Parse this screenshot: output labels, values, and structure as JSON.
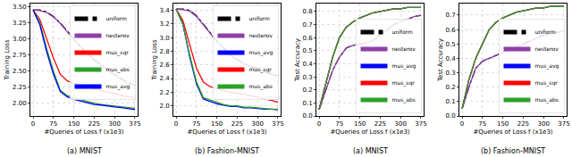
{
  "chart_data": [
    {
      "type": "line",
      "title": "(a) MNIST",
      "x_label": "#Queries of Loss f (x1e3)",
      "y_label": "Training Loss",
      "x": [
        0,
        25,
        50,
        75,
        100,
        125,
        150,
        175,
        200,
        225,
        250,
        275,
        300,
        325,
        350,
        375
      ],
      "xlim": [
        -10,
        385
      ],
      "xticks": [
        0,
        75,
        150,
        225,
        300,
        375
      ],
      "ylim": [
        1.8,
        3.55
      ],
      "yticks": [
        {
          "value": 2.0,
          "label": "2.00"
        },
        {
          "value": 2.25,
          "label": "2.25"
        },
        {
          "value": 2.5,
          "label": "2.50"
        },
        {
          "value": 2.75,
          "label": "2.75"
        },
        {
          "value": 3.0,
          "label": "3.00"
        },
        {
          "value": 3.25,
          "label": "3.25"
        },
        {
          "value": 3.5,
          "label": "3.50"
        }
      ],
      "grid": true,
      "legend": "upper right",
      "series": [
        {
          "name": "uniform",
          "color": "#000000",
          "line_style": "dashdot",
          "values": [
            3.45,
            3.45,
            3.42,
            3.35,
            3.25,
            3.12,
            3.0,
            2.88,
            2.78,
            2.68,
            2.6,
            2.52,
            2.45,
            2.38,
            2.32,
            2.28
          ]
        },
        {
          "name": "nesterov",
          "color": "#8e3fa8",
          "line_style": "solid",
          "values": [
            3.45,
            3.44,
            3.41,
            3.34,
            3.24,
            3.11,
            2.99,
            2.87,
            2.77,
            2.67,
            2.59,
            2.51,
            2.44,
            2.37,
            2.31,
            2.27
          ]
        },
        {
          "name": "mus_sqr",
          "color": "#ff0000",
          "line_style": "solid",
          "values": [
            3.45,
            3.3,
            3.0,
            2.7,
            2.45,
            2.35,
            2.3,
            2.28,
            2.25,
            2.22,
            2.2,
            2.18,
            2.15,
            2.12,
            2.1,
            2.08
          ]
        },
        {
          "name": "mus_abs",
          "color": "#2ca02c",
          "line_style": "solid",
          "values": [
            3.45,
            3.25,
            2.85,
            2.5,
            2.2,
            2.12,
            2.08,
            2.05,
            2.02,
            2.0,
            1.98,
            1.97,
            1.95,
            1.94,
            1.93,
            1.92
          ]
        },
        {
          "name": "mus_avg",
          "color": "#0000ff",
          "line_style": "solid",
          "values": [
            3.45,
            3.22,
            2.8,
            2.45,
            2.18,
            2.1,
            2.06,
            2.03,
            2.0,
            1.98,
            1.97,
            1.95,
            1.94,
            1.93,
            1.92,
            1.9
          ]
        }
      ]
    },
    {
      "type": "line",
      "title": "(b) Fashion-MNIST",
      "x_label": "#Queries of Loss f (x1e3)",
      "y_label": "Training Loss",
      "x": [
        0,
        25,
        50,
        75,
        100,
        125,
        150,
        175,
        200,
        225,
        250,
        275,
        300,
        325,
        350,
        375
      ],
      "xlim": [
        -10,
        385
      ],
      "xticks": [
        0,
        75,
        150,
        225,
        300,
        375
      ],
      "ylim": [
        1.85,
        3.5
      ],
      "yticks": [
        {
          "value": 2.0,
          "label": "2.0"
        },
        {
          "value": 2.2,
          "label": "2.2"
        },
        {
          "value": 2.4,
          "label": "2.4"
        },
        {
          "value": 2.6,
          "label": "2.6"
        },
        {
          "value": 2.8,
          "label": "2.8"
        },
        {
          "value": 3.0,
          "label": "3.0"
        },
        3.2,
        3.4
      ],
      "grid": true,
      "legend": "upper right",
      "series": [
        {
          "name": "uniform",
          "color": "#000000",
          "line_style": "dashdot",
          "values": [
            3.42,
            3.42,
            3.4,
            3.32,
            3.2,
            3.08,
            2.95,
            2.85,
            2.75,
            2.68,
            2.62,
            2.58,
            2.54,
            2.5,
            2.47,
            2.44
          ]
        },
        {
          "name": "nesterov",
          "color": "#8e3fa8",
          "line_style": "solid",
          "values": [
            3.42,
            3.41,
            3.39,
            3.31,
            3.19,
            3.07,
            2.94,
            2.84,
            2.74,
            2.67,
            2.61,
            2.57,
            2.53,
            2.49,
            2.46,
            2.43
          ]
        },
        {
          "name": "mus_avg",
          "color": "#0000ff",
          "line_style": "solid",
          "values": [
            3.42,
            3.2,
            2.72,
            2.32,
            2.1,
            2.06,
            2.03,
            2.01,
            1.99,
            1.99,
            1.97,
            1.97,
            1.96,
            1.95,
            1.95,
            1.94
          ]
        },
        {
          "name": "mus_sqr",
          "color": "#ff0000",
          "line_style": "solid",
          "values": [
            3.42,
            3.25,
            2.9,
            2.55,
            2.35,
            2.28,
            2.25,
            2.22,
            2.2,
            2.18,
            2.17,
            2.15,
            2.12,
            2.1,
            2.08,
            2.05
          ]
        },
        {
          "name": "mus_abs",
          "color": "#2ca02c",
          "line_style": "solid",
          "values": [
            3.42,
            3.2,
            2.75,
            2.35,
            2.12,
            2.08,
            2.05,
            2.02,
            2.0,
            2.0,
            1.98,
            1.98,
            1.97,
            1.96,
            1.95,
            1.95
          ]
        }
      ]
    },
    {
      "type": "line",
      "title": "(a) MNIST",
      "x_label": "#Queries of Loss f (x1e3)",
      "y_label": "Test Accuracy",
      "x": [
        0,
        25,
        50,
        75,
        100,
        125,
        150,
        175,
        200,
        225,
        250,
        275,
        300,
        325,
        350,
        375
      ],
      "xlim": [
        -10,
        385
      ],
      "xticks": [
        0,
        75,
        150,
        225,
        300,
        375
      ],
      "ylim": [
        0,
        0.86
      ],
      "yticks": [
        {
          "value": 0,
          "label": "0.0"
        },
        0.1,
        0.2,
        0.3,
        0.4,
        0.5,
        0.6,
        0.7,
        0.8
      ],
      "grid": true,
      "legend": "lower right",
      "series": [
        {
          "name": "uniform",
          "color": "#000000",
          "line_style": "dashdot",
          "values": [
            0.05,
            0.2,
            0.35,
            0.45,
            0.52,
            0.54,
            0.55,
            0.56,
            0.58,
            0.62,
            0.66,
            0.7,
            0.72,
            0.74,
            0.76,
            0.77
          ]
        },
        {
          "name": "nesterov",
          "color": "#8e3fa8",
          "line_style": "solid",
          "values": [
            0.05,
            0.2,
            0.35,
            0.45,
            0.52,
            0.54,
            0.55,
            0.56,
            0.58,
            0.62,
            0.66,
            0.7,
            0.72,
            0.74,
            0.76,
            0.77
          ]
        },
        {
          "name": "mus_avg",
          "color": "#0000ff",
          "line_style": "solid",
          "values": [
            0.05,
            0.25,
            0.45,
            0.6,
            0.68,
            0.72,
            0.75,
            0.77,
            0.79,
            0.8,
            0.81,
            0.82,
            0.82,
            0.83,
            0.83,
            0.83
          ]
        },
        {
          "name": "mus_sqr",
          "color": "#ff0000",
          "line_style": "solid",
          "values": [
            0.05,
            0.25,
            0.45,
            0.6,
            0.68,
            0.72,
            0.75,
            0.77,
            0.79,
            0.8,
            0.81,
            0.82,
            0.82,
            0.83,
            0.83,
            0.83
          ]
        },
        {
          "name": "mus_abs",
          "color": "#2ca02c",
          "line_style": "solid",
          "values": [
            0.05,
            0.25,
            0.45,
            0.6,
            0.68,
            0.72,
            0.75,
            0.77,
            0.79,
            0.8,
            0.81,
            0.82,
            0.82,
            0.83,
            0.83,
            0.83
          ]
        }
      ]
    },
    {
      "type": "line",
      "title": "(b) Fashion-MNIST",
      "x_label": "#Queries of Loss f (x1e3)",
      "y_label": "Test Accuracy",
      "x": [
        0,
        25,
        50,
        75,
        100,
        125,
        150,
        175,
        200,
        225,
        250,
        275,
        300,
        325,
        350,
        375
      ],
      "xlim": [
        -10,
        385
      ],
      "xticks": [
        0,
        75,
        150,
        225,
        300,
        375
      ],
      "ylim": [
        0,
        0.78
      ],
      "yticks": [
        {
          "value": 0,
          "label": "0.0"
        },
        0.1,
        0.2,
        0.3,
        0.4,
        0.5,
        0.6,
        0.7
      ],
      "grid": true,
      "legend": "lower right",
      "series": [
        {
          "name": "uniform",
          "color": "#000000",
          "line_style": "dashdot",
          "values": [
            0.05,
            0.2,
            0.33,
            0.38,
            0.4,
            0.42,
            0.44,
            0.46,
            0.48,
            0.5,
            0.52,
            0.54,
            0.56,
            0.57,
            0.58,
            0.59
          ]
        },
        {
          "name": "nesterov",
          "color": "#8e3fa8",
          "line_style": "solid",
          "values": [
            0.05,
            0.2,
            0.33,
            0.38,
            0.4,
            0.42,
            0.44,
            0.46,
            0.48,
            0.5,
            0.52,
            0.54,
            0.56,
            0.57,
            0.58,
            0.59
          ]
        },
        {
          "name": "mus_avg",
          "color": "#0000ff",
          "line_style": "solid",
          "values": [
            0.05,
            0.25,
            0.4,
            0.5,
            0.6,
            0.65,
            0.68,
            0.7,
            0.72,
            0.73,
            0.74,
            0.75,
            0.75,
            0.76,
            0.76,
            0.76
          ]
        },
        {
          "name": "mus_sqr",
          "color": "#ff0000",
          "line_style": "solid",
          "values": [
            0.05,
            0.25,
            0.4,
            0.5,
            0.6,
            0.65,
            0.68,
            0.7,
            0.72,
            0.73,
            0.74,
            0.75,
            0.75,
            0.76,
            0.76,
            0.76
          ]
        },
        {
          "name": "mus_abs",
          "color": "#2ca02c",
          "line_style": "solid",
          "values": [
            0.05,
            0.25,
            0.4,
            0.5,
            0.6,
            0.65,
            0.68,
            0.7,
            0.72,
            0.73,
            0.74,
            0.75,
            0.75,
            0.76,
            0.76,
            0.76
          ]
        }
      ]
    }
  ]
}
